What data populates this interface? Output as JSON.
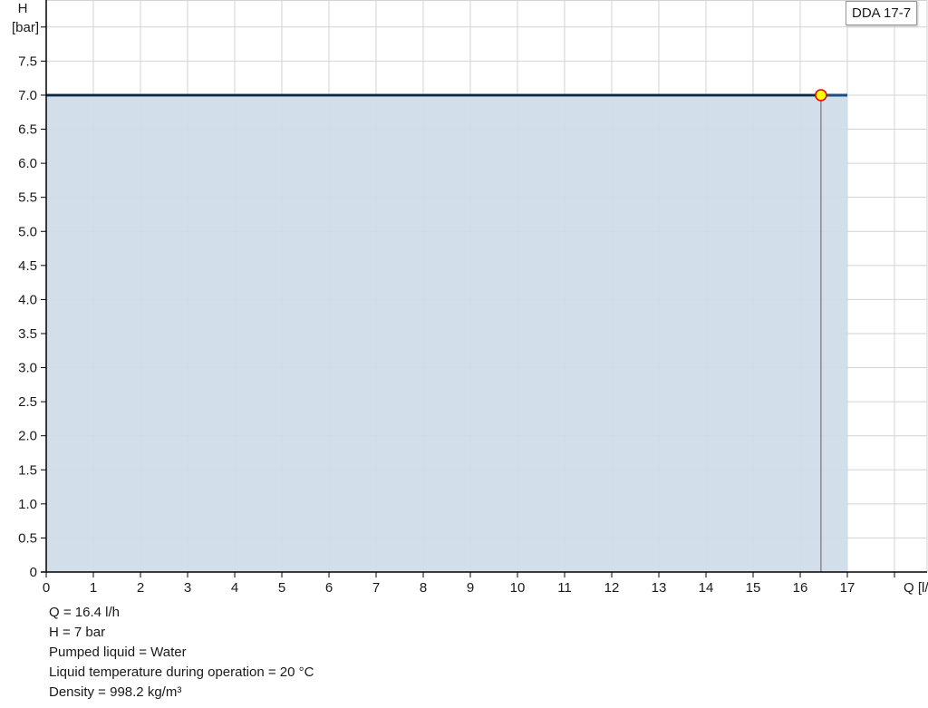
{
  "chart_data": {
    "type": "area",
    "xlabel": "Q [l/h]",
    "ylabel_line1": "H",
    "ylabel_line2": "[bar]",
    "xlim": [
      0,
      18.7
    ],
    "ylim": [
      0,
      8.4
    ],
    "x_ticks": [
      0,
      1,
      2,
      3,
      4,
      5,
      6,
      7,
      8,
      9,
      10,
      11,
      12,
      13,
      14,
      15,
      16,
      17
    ],
    "y_ticks": [
      "0",
      "0.5",
      "1.0",
      "1.5",
      "2.0",
      "2.5",
      "3.0",
      "3.5",
      "4.0",
      "4.5",
      "5.0",
      "5.5",
      "6.0",
      "6.5",
      "7.0",
      "7.5"
    ],
    "grid": true,
    "series": [
      {
        "name": "DDA 17-7",
        "x": [
          0,
          17
        ],
        "y": [
          7,
          7
        ],
        "color": "#1f4e7e",
        "fill": "#d0dce8"
      }
    ],
    "operating_point": {
      "x": 16.44,
      "y": 7.0,
      "color": "#ffff00",
      "border": "#e00000"
    },
    "legend_position": "top-right"
  },
  "legend": {
    "label": "DDA 17-7"
  },
  "info": [
    "Q = 16.4 l/h",
    "H = 7 bar",
    "Pumped liquid = Water",
    "Liquid temperature during operation = 20 °C",
    "Density = 998.2 kg/m³"
  ]
}
